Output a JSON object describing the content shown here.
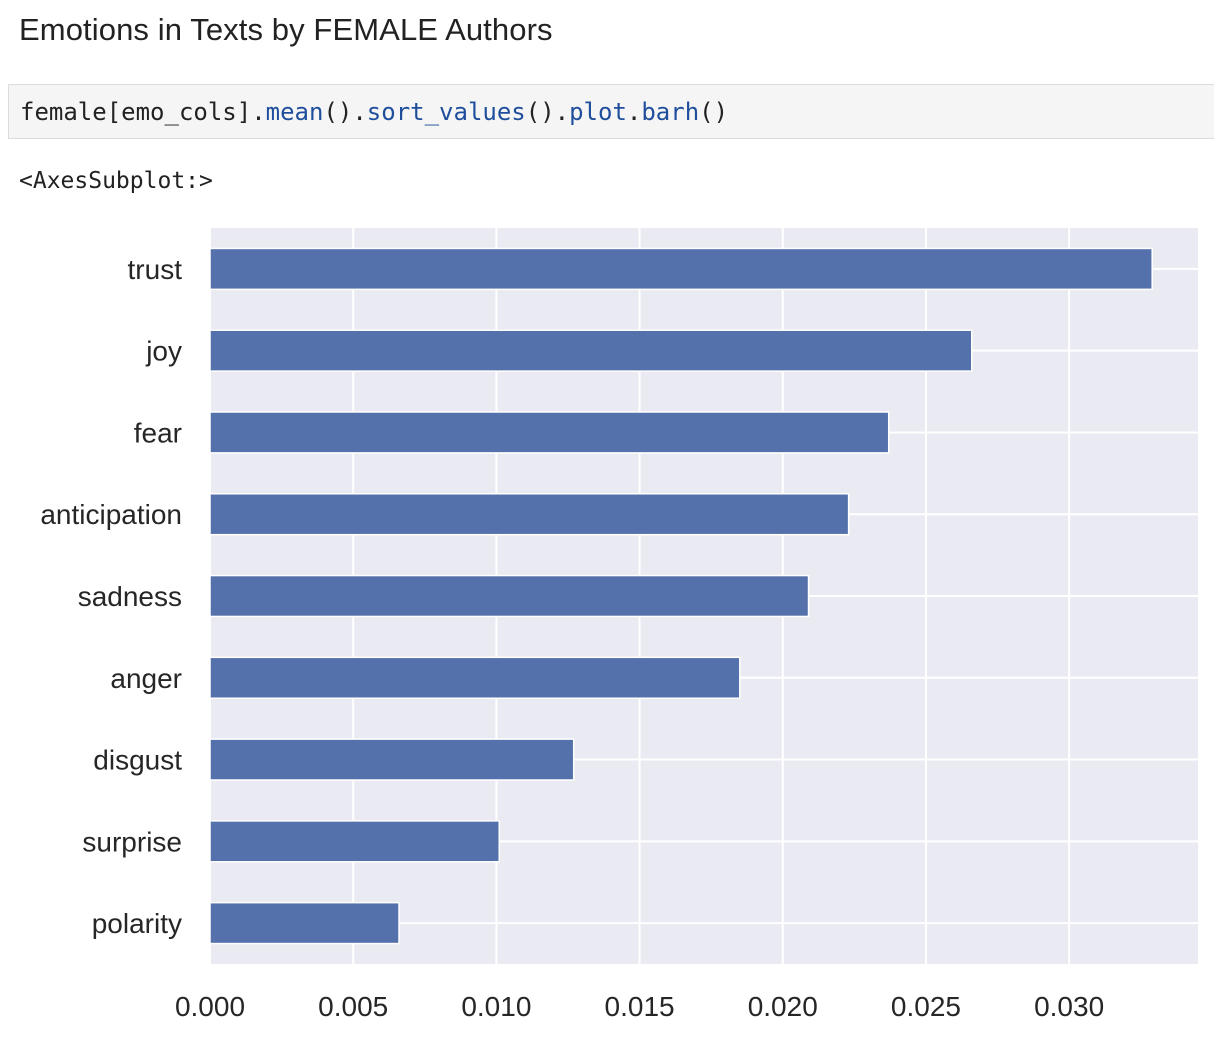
{
  "heading": "Emotions in Texts by FEMALE Authors",
  "code": {
    "tokens": [
      {
        "text": "female[emo_cols].",
        "kind": "plain"
      },
      {
        "text": "mean",
        "kind": "fn"
      },
      {
        "text": "().",
        "kind": "plain"
      },
      {
        "text": "sort_values",
        "kind": "fn"
      },
      {
        "text": "().",
        "kind": "plain"
      },
      {
        "text": "plot",
        "kind": "fn"
      },
      {
        "text": ".",
        "kind": "plain"
      },
      {
        "text": "barh",
        "kind": "fn"
      },
      {
        "text": "()",
        "kind": "plain"
      }
    ]
  },
  "output_text": "<AxesSubplot:>",
  "colors": {
    "bar": "#5471ab",
    "plot_background": "#eaeaf2",
    "grid": "#ffffff"
  },
  "chart_data": {
    "type": "bar",
    "orientation": "horizontal",
    "categories": [
      "trust",
      "joy",
      "fear",
      "anticipation",
      "sadness",
      "anger",
      "disgust",
      "surprise",
      "polarity"
    ],
    "values": [
      0.0329,
      0.0266,
      0.0237,
      0.0223,
      0.0209,
      0.0185,
      0.0127,
      0.0101,
      0.0066
    ],
    "xticks": [
      "0.000",
      "0.005",
      "0.010",
      "0.015",
      "0.020",
      "0.025",
      "0.030"
    ],
    "xlim": [
      0,
      0.0345
    ],
    "title": "",
    "xlabel": "",
    "ylabel": "",
    "grid": true,
    "legend": false
  }
}
